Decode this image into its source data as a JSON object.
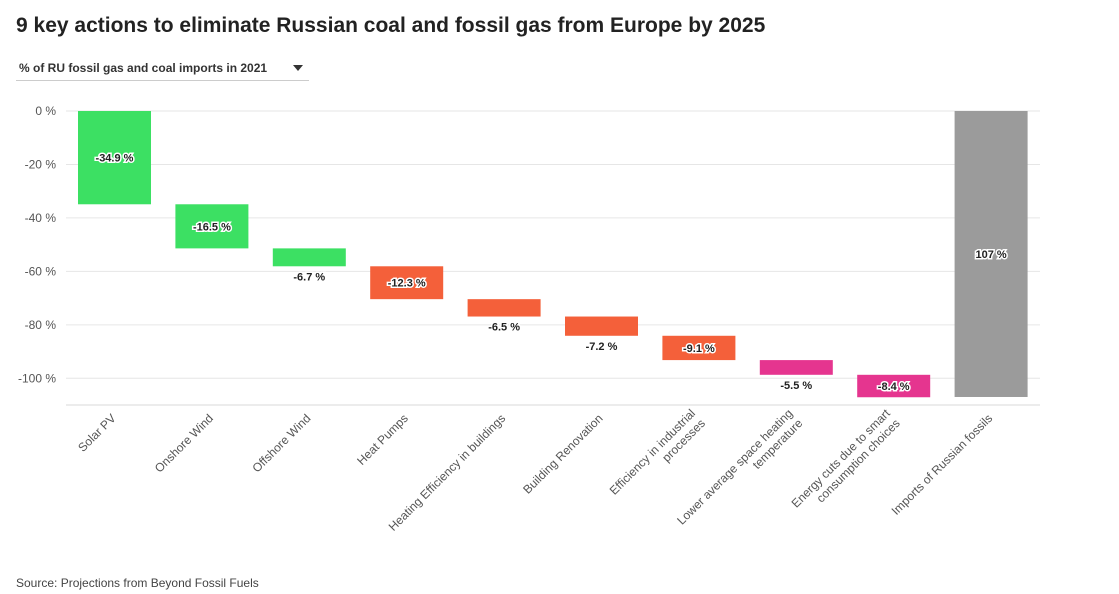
{
  "title": "9 key actions to eliminate Russian coal and fossil gas from Europe by 2025",
  "dropdown": {
    "selected": "% of RU fossil gas and coal imports in 2021"
  },
  "source": "Source: Projections from Beyond Fossil Fuels",
  "colors": {
    "green": "#3ce063",
    "orange": "#f4603a",
    "pink": "#e5358f",
    "grey": "#9b9b9b"
  },
  "chart_data": {
    "type": "waterfall",
    "ylim": [
      -110,
      0
    ],
    "yticks": [
      0,
      -20,
      -40,
      -60,
      -80,
      -100
    ],
    "ytick_labels": [
      "0 %",
      "-20 %",
      "-40 %",
      "-60 %",
      "-80 %",
      "-100 %"
    ],
    "grid": true,
    "categories": [
      "Solar PV",
      "Onshore Wind",
      "Offshore Wind",
      "Heat Pumps",
      "Heating Efficiency in buildings",
      "Building Renovation",
      "Efficiency in industrial processes",
      "Lower average space heating temperature",
      "Energy cuts due to smart consumption choices",
      "Imports of Russian fossils"
    ],
    "category_lines": [
      [
        "Solar PV"
      ],
      [
        "Onshore Wind"
      ],
      [
        "Offshore Wind"
      ],
      [
        "Heat Pumps"
      ],
      [
        "Heating Efficiency in buildings"
      ],
      [
        "Building Renovation"
      ],
      [
        "Efficiency in industrial",
        "processes"
      ],
      [
        "Lower average space heating",
        "temperature"
      ],
      [
        "Energy cuts due to smart",
        "consumption choices"
      ],
      [
        "Imports of Russian fossils"
      ]
    ],
    "values": [
      -34.9,
      -16.5,
      -6.7,
      -12.3,
      -6.5,
      -7.2,
      -9.1,
      -5.5,
      -8.4,
      107
    ],
    "labels": [
      "-34.9 %",
      "-16.5 %",
      "-6.7 %",
      "-12.3 %",
      "-6.5 %",
      "-7.2 %",
      "-9.1 %",
      "-5.5 %",
      "-8.4 %",
      "107 %"
    ],
    "color_keys": [
      "green",
      "green",
      "green",
      "orange",
      "orange",
      "orange",
      "orange",
      "pink",
      "pink",
      "grey"
    ],
    "total_index": 9
  }
}
